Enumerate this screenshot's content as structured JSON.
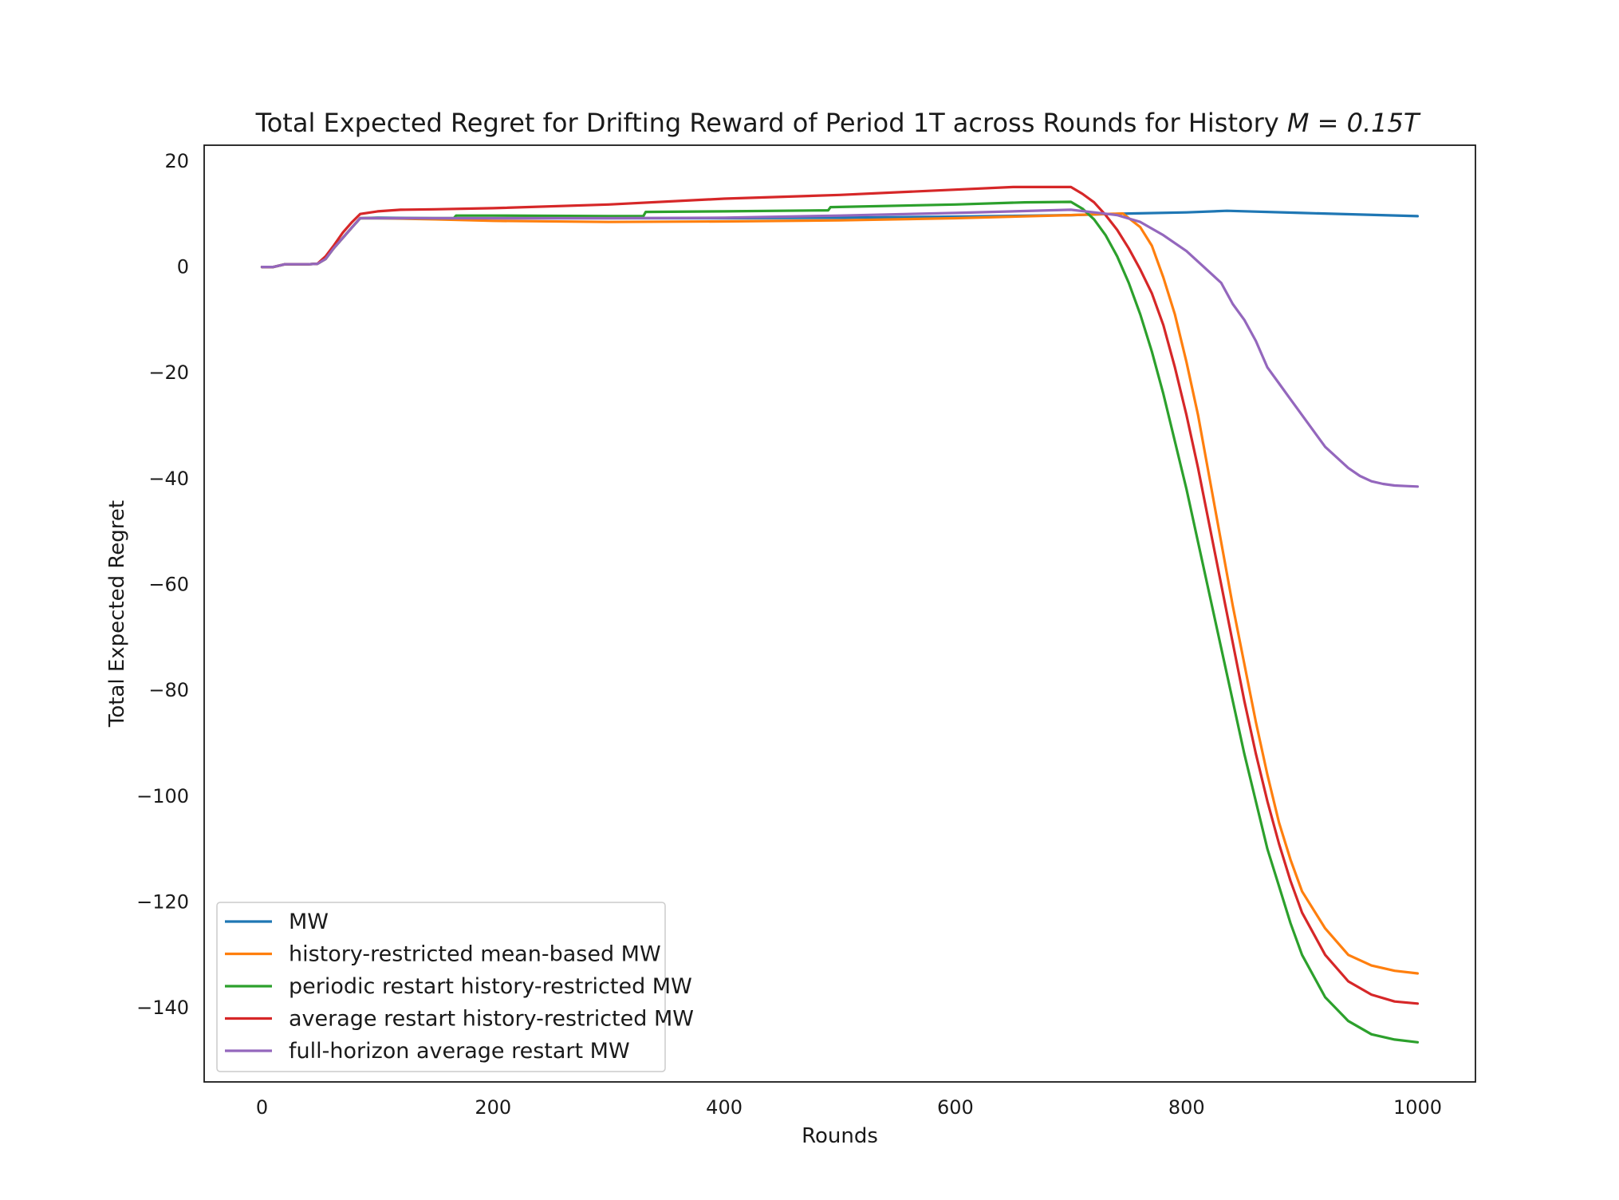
{
  "chart_data": {
    "type": "line",
    "title": "Total Expected Regret for Drifting Reward of Period 1T across Rounds for History ",
    "title_math": "M = 0.15T",
    "xlabel": "Rounds",
    "ylabel": "Total Expected Regret",
    "xlim": [
      -50,
      1050
    ],
    "ylim": [
      -154,
      23
    ],
    "xticks": [
      0,
      200,
      400,
      600,
      800,
      1000
    ],
    "yticks": [
      20,
      0,
      -20,
      -40,
      -60,
      -80,
      -100,
      -120,
      -140
    ],
    "xtick_labels": [
      "0",
      "200",
      "400",
      "600",
      "800",
      "1000"
    ],
    "ytick_labels": [
      "20",
      "0",
      "−20",
      "−40",
      "−60",
      "−80",
      "−100",
      "−120",
      "−140"
    ],
    "grid": false,
    "legend_position": "lower-left",
    "series": [
      {
        "name": "MW",
        "color": "#1f77b4",
        "points": [
          [
            0,
            0
          ],
          [
            10,
            0
          ],
          [
            20,
            0.5
          ],
          [
            30,
            0.5
          ],
          [
            40,
            0.5
          ],
          [
            48,
            0.6
          ],
          [
            55,
            1.5
          ],
          [
            62,
            3.5
          ],
          [
            70,
            5.5
          ],
          [
            78,
            7.5
          ],
          [
            85,
            9.2
          ],
          [
            100,
            9.3
          ],
          [
            150,
            9.2
          ],
          [
            200,
            9.2
          ],
          [
            300,
            9.2
          ],
          [
            400,
            9.2
          ],
          [
            500,
            9.3
          ],
          [
            600,
            9.5
          ],
          [
            700,
            9.8
          ],
          [
            750,
            10.1
          ],
          [
            800,
            10.3
          ],
          [
            835,
            10.6
          ],
          [
            900,
            10.2
          ],
          [
            950,
            9.9
          ],
          [
            1000,
            9.6
          ]
        ]
      },
      {
        "name": "history-restricted mean-based MW",
        "color": "#ff7f0e",
        "points": [
          [
            0,
            0
          ],
          [
            10,
            0
          ],
          [
            20,
            0.5
          ],
          [
            30,
            0.5
          ],
          [
            40,
            0.5
          ],
          [
            48,
            0.6
          ],
          [
            55,
            1.5
          ],
          [
            62,
            3.5
          ],
          [
            70,
            5.5
          ],
          [
            78,
            7.5
          ],
          [
            85,
            9.2
          ],
          [
            100,
            9.2
          ],
          [
            150,
            9.0
          ],
          [
            200,
            8.7
          ],
          [
            300,
            8.5
          ],
          [
            400,
            8.6
          ],
          [
            500,
            8.8
          ],
          [
            600,
            9.2
          ],
          [
            700,
            9.8
          ],
          [
            745,
            10.1
          ],
          [
            760,
            7.5
          ],
          [
            770,
            4
          ],
          [
            780,
            -2
          ],
          [
            790,
            -9
          ],
          [
            800,
            -18
          ],
          [
            810,
            -28
          ],
          [
            820,
            -40
          ],
          [
            830,
            -52
          ],
          [
            840,
            -64
          ],
          [
            850,
            -75
          ],
          [
            860,
            -86
          ],
          [
            870,
            -96
          ],
          [
            880,
            -105
          ],
          [
            890,
            -112
          ],
          [
            900,
            -118
          ],
          [
            920,
            -125
          ],
          [
            940,
            -130
          ],
          [
            960,
            -132
          ],
          [
            980,
            -133
          ],
          [
            1000,
            -133.5
          ]
        ]
      },
      {
        "name": "periodic restart history-restricted MW",
        "color": "#2ca02c",
        "points": [
          [
            0,
            0
          ],
          [
            10,
            0
          ],
          [
            20,
            0.5
          ],
          [
            30,
            0.5
          ],
          [
            40,
            0.5
          ],
          [
            48,
            0.6
          ],
          [
            55,
            1.5
          ],
          [
            62,
            3.5
          ],
          [
            70,
            5.5
          ],
          [
            78,
            7.5
          ],
          [
            85,
            9.2
          ],
          [
            150,
            9.2
          ],
          [
            166,
            9.2
          ],
          [
            168,
            9.7
          ],
          [
            200,
            9.7
          ],
          [
            300,
            9.6
          ],
          [
            330,
            9.6
          ],
          [
            332,
            10.4
          ],
          [
            400,
            10.5
          ],
          [
            490,
            10.7
          ],
          [
            492,
            11.3
          ],
          [
            600,
            11.8
          ],
          [
            660,
            12.2
          ],
          [
            700,
            12.3
          ],
          [
            710,
            11
          ],
          [
            720,
            9
          ],
          [
            730,
            6
          ],
          [
            740,
            2
          ],
          [
            750,
            -3
          ],
          [
            760,
            -9
          ],
          [
            770,
            -16
          ],
          [
            780,
            -24
          ],
          [
            790,
            -33
          ],
          [
            800,
            -42
          ],
          [
            810,
            -52
          ],
          [
            820,
            -62
          ],
          [
            830,
            -72
          ],
          [
            840,
            -82
          ],
          [
            850,
            -92
          ],
          [
            860,
            -101
          ],
          [
            870,
            -110
          ],
          [
            880,
            -117
          ],
          [
            890,
            -124
          ],
          [
            900,
            -130
          ],
          [
            920,
            -138
          ],
          [
            940,
            -142.5
          ],
          [
            960,
            -145
          ],
          [
            980,
            -146
          ],
          [
            1000,
            -146.5
          ]
        ]
      },
      {
        "name": "average restart history-restricted MW",
        "color": "#d62728",
        "points": [
          [
            0,
            0
          ],
          [
            10,
            0
          ],
          [
            20,
            0.5
          ],
          [
            30,
            0.5
          ],
          [
            40,
            0.5
          ],
          [
            48,
            0.6
          ],
          [
            55,
            2
          ],
          [
            62,
            4
          ],
          [
            70,
            6.5
          ],
          [
            78,
            8.5
          ],
          [
            85,
            10
          ],
          [
            100,
            10.5
          ],
          [
            120,
            10.8
          ],
          [
            150,
            10.9
          ],
          [
            200,
            11.1
          ],
          [
            300,
            11.8
          ],
          [
            400,
            12.9
          ],
          [
            500,
            13.6
          ],
          [
            600,
            14.6
          ],
          [
            650,
            15.1
          ],
          [
            700,
            15.1
          ],
          [
            710,
            13.8
          ],
          [
            720,
            12.2
          ],
          [
            730,
            9.8
          ],
          [
            740,
            7
          ],
          [
            750,
            3.5
          ],
          [
            760,
            -0.5
          ],
          [
            770,
            -5
          ],
          [
            780,
            -11
          ],
          [
            790,
            -19
          ],
          [
            800,
            -28
          ],
          [
            810,
            -38
          ],
          [
            820,
            -49
          ],
          [
            830,
            -60
          ],
          [
            840,
            -71
          ],
          [
            850,
            -82
          ],
          [
            860,
            -92
          ],
          [
            870,
            -101
          ],
          [
            880,
            -109
          ],
          [
            890,
            -116
          ],
          [
            900,
            -122
          ],
          [
            920,
            -130
          ],
          [
            940,
            -135
          ],
          [
            960,
            -137.5
          ],
          [
            980,
            -138.8
          ],
          [
            1000,
            -139.2
          ]
        ]
      },
      {
        "name": "full-horizon average restart MW",
        "color": "#9467bd",
        "points": [
          [
            0,
            0
          ],
          [
            10,
            0
          ],
          [
            20,
            0.5
          ],
          [
            30,
            0.5
          ],
          [
            40,
            0.5
          ],
          [
            48,
            0.6
          ],
          [
            55,
            1.5
          ],
          [
            62,
            3.5
          ],
          [
            70,
            5.5
          ],
          [
            78,
            7.5
          ],
          [
            85,
            9.2
          ],
          [
            150,
            9.2
          ],
          [
            200,
            9.2
          ],
          [
            300,
            9.2
          ],
          [
            400,
            9.3
          ],
          [
            500,
            9.7
          ],
          [
            600,
            10.2
          ],
          [
            700,
            10.8
          ],
          [
            720,
            10.3
          ],
          [
            740,
            9.8
          ],
          [
            760,
            8.5
          ],
          [
            780,
            6
          ],
          [
            800,
            3
          ],
          [
            810,
            1
          ],
          [
            820,
            -1
          ],
          [
            830,
            -3
          ],
          [
            840,
            -7
          ],
          [
            850,
            -10
          ],
          [
            860,
            -14
          ],
          [
            870,
            -19
          ],
          [
            880,
            -22
          ],
          [
            890,
            -25
          ],
          [
            900,
            -28
          ],
          [
            910,
            -31
          ],
          [
            920,
            -34
          ],
          [
            930,
            -36
          ],
          [
            940,
            -38
          ],
          [
            950,
            -39.5
          ],
          [
            960,
            -40.5
          ],
          [
            970,
            -41
          ],
          [
            980,
            -41.3
          ],
          [
            990,
            -41.4
          ],
          [
            1000,
            -41.5
          ]
        ]
      }
    ]
  }
}
